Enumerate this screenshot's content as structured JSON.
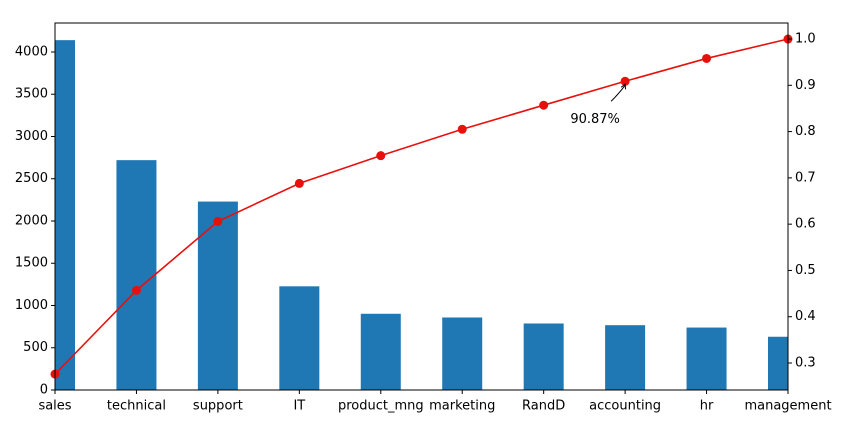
{
  "chart_data": {
    "type": "bar",
    "categories": [
      "sales",
      "technical",
      "support",
      "IT",
      "product_mng",
      "marketing",
      "RandD",
      "accounting",
      "hr",
      "management"
    ],
    "series": [
      {
        "type": "bar",
        "color": "#1f77b4",
        "values": [
          4140,
          2720,
          2230,
          1227,
          902,
          858,
          787,
          767,
          739,
          630
        ]
      },
      {
        "type": "line",
        "axis": "y2",
        "color": "#e8100c",
        "values": [
          0.276,
          0.457,
          0.606,
          0.688,
          0.748,
          0.805,
          0.857,
          0.9087,
          0.958,
          1.0
        ]
      }
    ],
    "annotation": "90.87%",
    "ylim": [
      0,
      4343
    ],
    "yticks": [
      0,
      500,
      1000,
      1500,
      2000,
      2500,
      3000,
      3500,
      4000
    ],
    "y2lim": [
      0.2417,
      1.0346
    ],
    "y2ticks": [
      0.3,
      0.4,
      0.5,
      0.6,
      0.7,
      0.8,
      0.9,
      {
        "value": 1.0,
        "label": "1.0"
      }
    ]
  }
}
